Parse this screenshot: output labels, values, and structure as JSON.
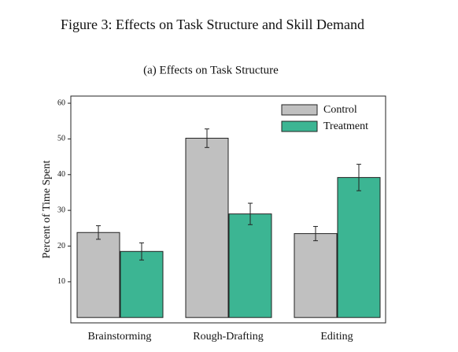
{
  "chart_data": {
    "type": "bar",
    "title": "Figure 3: Effects on Task Structure and Skill Demand",
    "subtitle": "(a) Effects on Task Structure",
    "y_label": "Percent of Time Spent",
    "categories": [
      "Brainstorming",
      "Rough-Drafting",
      "Editing"
    ],
    "series": [
      {
        "name": "Control",
        "color": "#c0c0c0",
        "values": [
          23.8,
          50.2,
          23.5
        ],
        "errors": [
          1.9,
          2.6,
          2.0
        ]
      },
      {
        "name": "Treatment",
        "color": "#3cb593",
        "values": [
          18.5,
          29.0,
          39.2
        ],
        "errors": [
          2.4,
          3.0,
          3.7
        ]
      }
    ],
    "ylim": [
      -1.5,
      62
    ],
    "yticks": [
      10,
      20,
      30,
      40,
      50,
      60
    ],
    "legend": "upper-right"
  }
}
